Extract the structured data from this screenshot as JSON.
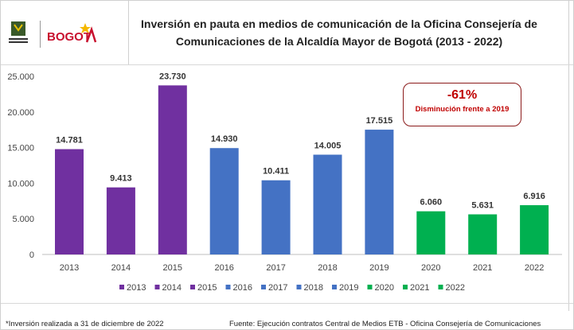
{
  "logo": {
    "left_text": "ALCALDÍA MAYOR DE BOGOTÁ D.C.",
    "brand": "BOGOTÁ"
  },
  "chart_data": {
    "type": "bar",
    "title": "Inversión en pauta en medios de comunicación de la Oficina Consejería de Comunicaciones de la Alcaldía Mayor de Bogotá (2013 - 2022)",
    "title_lines": [
      "Inversión en pauta en medios de comunicación de la Oficina Consejería de",
      "Comunicaciones de la Alcaldía Mayor de Bogotá (2013 - 2022)"
    ],
    "categories": [
      "2013",
      "2014",
      "2015",
      "2016",
      "2017",
      "2018",
      "2019",
      "2020",
      "2021",
      "2022"
    ],
    "values": [
      14781,
      9413,
      23730,
      14930,
      10411,
      14005,
      17515,
      6060,
      5631,
      6916
    ],
    "data_labels": [
      "14.781",
      "9.413",
      "23.730",
      "14.930",
      "10.411",
      "14.005",
      "17.515",
      "6.060",
      "5.631",
      "6.916"
    ],
    "colors": [
      "#7030a0",
      "#7030a0",
      "#7030a0",
      "#4472c4",
      "#4472c4",
      "#4472c4",
      "#4472c4",
      "#00b050",
      "#00b050",
      "#00b050"
    ],
    "ylim": [
      0,
      25000
    ],
    "yticks": [
      0,
      5000,
      10000,
      15000,
      20000,
      25000
    ],
    "ytick_labels": [
      "0",
      "5.000",
      "10.000",
      "15.000",
      "20.000",
      "25.000"
    ],
    "grid": false,
    "legend_position": "bottom",
    "legend": [
      "2013",
      "2014",
      "2015",
      "2016",
      "2017",
      "2018",
      "2019",
      "2020",
      "2021",
      "2022"
    ]
  },
  "callout": {
    "value": "-61%",
    "text": "Disminución frente a 2019",
    "color": "#c00000"
  },
  "footer": {
    "note": "*Inversión realizada a 31 de diciembre de 2022",
    "source": "Fuente: Ejecución contratos Central de Medios ETB - Oficina Consejería de Comunicaciones"
  }
}
